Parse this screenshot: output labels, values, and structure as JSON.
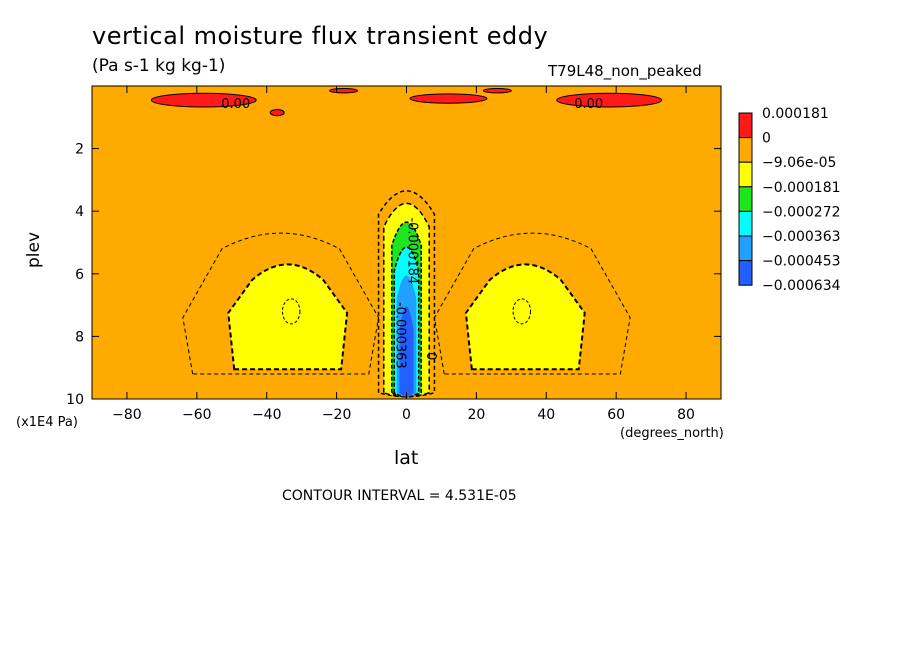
{
  "title": "vertical moisture flux transient eddy",
  "subtitle": "(Pa s-1 kg kg-1)",
  "run_label": "T79L48_non_peaked",
  "ylabel": "plev",
  "yunit": "(x1E4 Pa)",
  "xlabel": "lat",
  "xunit": "(degrees_north)",
  "contour_interval": "CONTOUR INTERVAL = 4.531E-05",
  "chart_data": {
    "type": "heatmap",
    "x_axis": {
      "label": "lat",
      "range": [
        -90,
        90
      ],
      "ticks": [
        -80,
        -60,
        -40,
        -20,
        0,
        20,
        40,
        60,
        80
      ]
    },
    "y_axis": {
      "label": "plev",
      "range": [
        0,
        10
      ],
      "inverted": true,
      "ticks": [
        2,
        4,
        6,
        8,
        10
      ]
    },
    "colorbar": [
      {
        "label": "0.000181",
        "color": "#ff1a1a"
      },
      {
        "label": "0",
        "color": "#ffaa00"
      },
      {
        "label": "-9.06e-05",
        "color": "#ffff00"
      },
      {
        "label": "-0.000181",
        "color": "#1ee61e"
      },
      {
        "label": "-0.000272",
        "color": "#00ffff"
      },
      {
        "label": "-0.000363",
        "color": "#22a0ff"
      },
      {
        "label": "-0.000453",
        "color": "#2160ff"
      },
      {
        "label": "-0.000634",
        "color": ""
      }
    ],
    "background_color": "#ffaa00",
    "contour_labels": [
      "0.00",
      "0.00",
      "-0.000184",
      "-0.000363",
      "0"
    ]
  }
}
